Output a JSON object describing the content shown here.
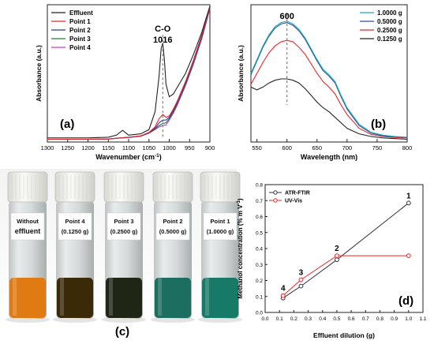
{
  "chart_data": [
    {
      "id": "a",
      "type": "line",
      "panel_letter": "(a)",
      "xlabel": "Wavenumber (cm",
      "xlabel_sup": "-1",
      "xlabel_tail": ")",
      "ylabel": "Absorbance (a.u.)",
      "x_reversed": true,
      "xlim": [
        1300,
        900
      ],
      "ylim": [
        0,
        1
      ],
      "xticks": [
        "1300",
        "1250",
        "1200",
        "1150",
        "1100",
        "1050",
        "1000",
        "950",
        "900"
      ],
      "annotation_top": "C-O",
      "annotation_bottom": "1016",
      "annotation_x": 1016,
      "legend_position": "top-left",
      "series": [
        {
          "name": "Effluent",
          "color": "#222222"
        },
        {
          "name": "Point 1",
          "color": "#e8262a"
        },
        {
          "name": "Point 2",
          "color": "#2b3ba8"
        },
        {
          "name": "Point 3",
          "color": "#1b7d3a"
        },
        {
          "name": "Point 4",
          "color": "#c53ad8"
        }
      ],
      "curves": [
        {
          "x": [
            1300,
            1250,
            1200,
            1150,
            1130,
            1115,
            1100,
            1070,
            1050,
            1035,
            1025,
            1020,
            1016,
            1012,
            1008,
            1000,
            990,
            980,
            960,
            940,
            920,
            900
          ],
          "y": [
            0.03,
            0.03,
            0.03,
            0.035,
            0.05,
            0.085,
            0.05,
            0.06,
            0.09,
            0.22,
            0.48,
            0.68,
            0.72,
            0.6,
            0.42,
            0.33,
            0.35,
            0.4,
            0.5,
            0.64,
            0.8,
            0.99
          ]
        },
        {
          "x": [
            1300,
            1250,
            1200,
            1150,
            1120,
            1100,
            1070,
            1050,
            1035,
            1025,
            1016,
            1008,
            1000,
            990,
            980,
            960,
            940,
            920,
            900
          ],
          "y": [
            0.02,
            0.02,
            0.02,
            0.022,
            0.03,
            0.035,
            0.045,
            0.07,
            0.11,
            0.17,
            0.2,
            0.18,
            0.19,
            0.24,
            0.3,
            0.44,
            0.6,
            0.78,
            0.98
          ]
        },
        {
          "x": [
            1300,
            1250,
            1200,
            1150,
            1120,
            1100,
            1070,
            1050,
            1035,
            1025,
            1016,
            1008,
            1000,
            990,
            980,
            960,
            940,
            920,
            900
          ],
          "y": [
            0.02,
            0.02,
            0.02,
            0.022,
            0.03,
            0.034,
            0.044,
            0.068,
            0.1,
            0.14,
            0.16,
            0.16,
            0.18,
            0.23,
            0.29,
            0.43,
            0.59,
            0.77,
            0.98
          ]
        },
        {
          "x": [
            1300,
            1250,
            1200,
            1150,
            1120,
            1100,
            1070,
            1050,
            1035,
            1025,
            1016,
            1008,
            1000,
            990,
            980,
            960,
            940,
            920,
            900
          ],
          "y": [
            0.02,
            0.02,
            0.02,
            0.022,
            0.03,
            0.034,
            0.043,
            0.066,
            0.095,
            0.12,
            0.135,
            0.14,
            0.17,
            0.22,
            0.28,
            0.42,
            0.58,
            0.76,
            0.98
          ]
        },
        {
          "x": [
            1300,
            1250,
            1200,
            1150,
            1120,
            1100,
            1070,
            1050,
            1035,
            1025,
            1016,
            1008,
            1000,
            990,
            980,
            960,
            940,
            920,
            900
          ],
          "y": [
            0.02,
            0.02,
            0.02,
            0.022,
            0.03,
            0.033,
            0.042,
            0.064,
            0.09,
            0.11,
            0.12,
            0.125,
            0.16,
            0.21,
            0.27,
            0.41,
            0.57,
            0.75,
            0.97
          ]
        }
      ]
    },
    {
      "id": "b",
      "type": "line",
      "panel_letter": "(b)",
      "xlabel": "Wavelength (nm)",
      "ylabel": "Absorbance (a.u.)",
      "xlim": [
        540,
        800
      ],
      "ylim": [
        0,
        1
      ],
      "xticks": [
        "550",
        "600",
        "650",
        "700",
        "750",
        "800"
      ],
      "annotation_top": "600",
      "annotation_x": 600,
      "legend_position": "top-right",
      "series": [
        {
          "name": "1.0000 g",
          "color": "#1fa9b8"
        },
        {
          "name": "0.5000 g",
          "color": "#2d4f9e"
        },
        {
          "name": "0.2500 g",
          "color": "#e8262a"
        },
        {
          "name": "0.1250 g",
          "color": "#222222"
        }
      ],
      "curves": [
        {
          "x": [
            540,
            550,
            560,
            570,
            580,
            590,
            600,
            610,
            620,
            630,
            640,
            650,
            660,
            670,
            680,
            690,
            700,
            720,
            740,
            760,
            780,
            800
          ],
          "y": [
            0.5,
            0.6,
            0.7,
            0.78,
            0.84,
            0.87,
            0.88,
            0.86,
            0.82,
            0.76,
            0.68,
            0.6,
            0.53,
            0.49,
            0.44,
            0.34,
            0.25,
            0.13,
            0.07,
            0.05,
            0.04,
            0.035
          ]
        },
        {
          "x": [
            540,
            550,
            560,
            570,
            580,
            590,
            600,
            610,
            620,
            630,
            640,
            650,
            660,
            670,
            680,
            690,
            700,
            720,
            740,
            760,
            780,
            800
          ],
          "y": [
            0.49,
            0.59,
            0.69,
            0.77,
            0.83,
            0.86,
            0.87,
            0.85,
            0.81,
            0.75,
            0.67,
            0.59,
            0.52,
            0.48,
            0.43,
            0.33,
            0.24,
            0.12,
            0.065,
            0.045,
            0.038,
            0.033
          ]
        },
        {
          "x": [
            540,
            550,
            560,
            570,
            580,
            590,
            600,
            610,
            620,
            630,
            640,
            650,
            660,
            670,
            680,
            690,
            700,
            720,
            740,
            760,
            780,
            800
          ],
          "y": [
            0.42,
            0.5,
            0.58,
            0.65,
            0.7,
            0.73,
            0.74,
            0.73,
            0.69,
            0.64,
            0.57,
            0.5,
            0.44,
            0.4,
            0.35,
            0.27,
            0.2,
            0.1,
            0.055,
            0.04,
            0.033,
            0.03
          ]
        },
        {
          "x": [
            540,
            550,
            560,
            570,
            580,
            590,
            600,
            610,
            620,
            630,
            640,
            650,
            660,
            670,
            680,
            690,
            700,
            720,
            740,
            760,
            780,
            800
          ],
          "y": [
            0.4,
            0.38,
            0.4,
            0.43,
            0.45,
            0.46,
            0.46,
            0.45,
            0.43,
            0.39,
            0.34,
            0.29,
            0.25,
            0.22,
            0.18,
            0.14,
            0.1,
            0.06,
            0.04,
            0.03,
            0.025,
            0.02
          ]
        }
      ]
    },
    {
      "id": "d",
      "type": "line",
      "panel_letter": "(d)",
      "xlabel": "Effluent dilution (g)",
      "ylabel": "Methanol concentration (% m V",
      "ylabel_sup": "-1",
      "ylabel_tail": ")",
      "xlim": [
        0.0,
        1.1
      ],
      "ylim": [
        0.0,
        0.8
      ],
      "xticks": [
        "0.0",
        "0.1",
        "0.2",
        "0.3",
        "0.4",
        "0.5",
        "0.6",
        "0.7",
        "0.8",
        "0.9",
        "1.0",
        "1.1"
      ],
      "yticks": [
        "0.0",
        "0.1",
        "0.2",
        "0.3",
        "0.4",
        "0.5",
        "0.6",
        "0.7",
        "0.8"
      ],
      "legend_position": "top-left",
      "categories": [
        0.125,
        0.25,
        0.5,
        1.0
      ],
      "point_labels": [
        "4",
        "3",
        "2",
        "1"
      ],
      "series": [
        {
          "name": "ATR-FTIR",
          "color": "#333344",
          "values": [
            0.09,
            0.165,
            0.33,
            0.685
          ]
        },
        {
          "name": "UV-Vis",
          "color": "#e8262a",
          "values": [
            0.105,
            0.205,
            0.355,
            0.355
          ]
        }
      ]
    }
  ],
  "photo": {
    "panel_letter": "(c)",
    "vials": [
      {
        "line1": "Without",
        "line2": "effluent",
        "liquid": "#e07a12"
      },
      {
        "line1": "Point 4",
        "line2": "(0.1250 g)",
        "liquid": "#3a2a08"
      },
      {
        "line1": "Point 3",
        "line2": "(0.2500 g)",
        "liquid": "#1f2616"
      },
      {
        "line1": "Point 2",
        "line2": "(0.5000 g)",
        "liquid": "#1c6e60"
      },
      {
        "line1": "Point 1",
        "line2": "(1.0000 g)",
        "liquid": "#177a68"
      }
    ]
  }
}
